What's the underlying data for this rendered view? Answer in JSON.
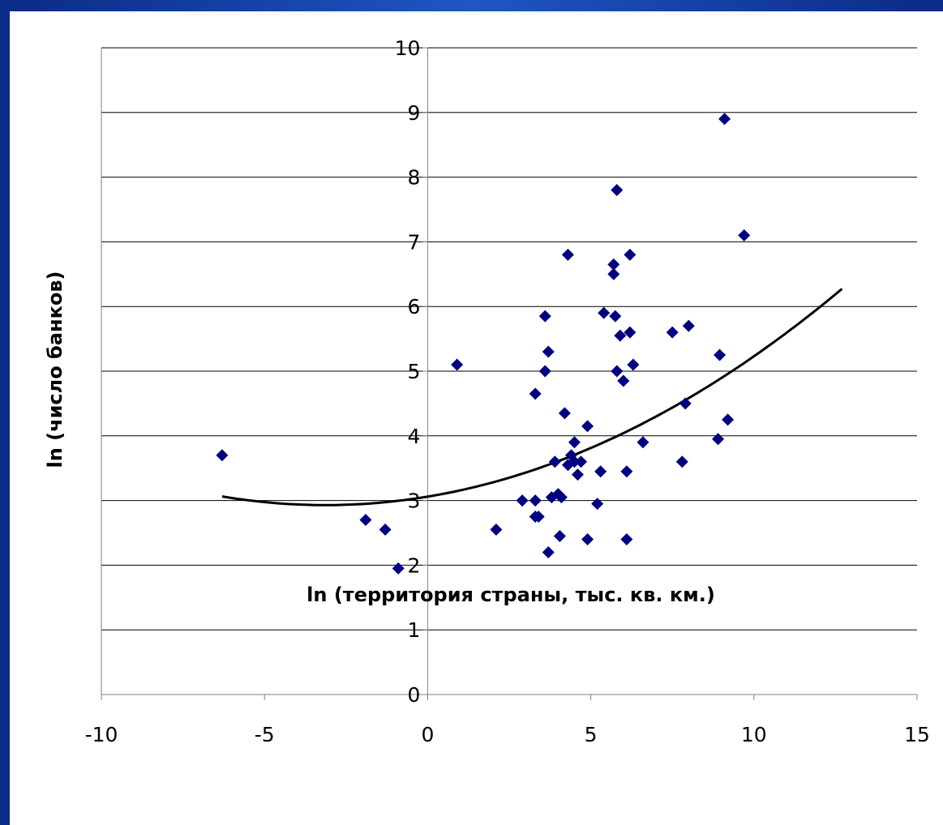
{
  "chart_data": {
    "type": "scatter",
    "xlabel": "ln (территория страны, тыс. кв. км.)",
    "ylabel": "ln (число банков)",
    "xlim": [
      -10,
      15
    ],
    "ylim": [
      0,
      10
    ],
    "x_ticks": [
      -10,
      -5,
      0,
      5,
      10,
      15
    ],
    "y_ticks": [
      0,
      1,
      2,
      3,
      4,
      5,
      6,
      7,
      8,
      9,
      10
    ],
    "x_tick_labels": [
      "-10",
      "-5",
      "0",
      "5",
      "10",
      "15"
    ],
    "y_tick_labels": [
      "0",
      "1",
      "2",
      "3",
      "4",
      "5",
      "6",
      "7",
      "8",
      "9",
      "10"
    ],
    "grid": "horizontal",
    "marker_color": "#000080",
    "trend_color": "#000000",
    "points": [
      [
        -6.3,
        3.7
      ],
      [
        -1.9,
        2.7
      ],
      [
        -1.3,
        2.55
      ],
      [
        -0.9,
        1.95
      ],
      [
        0.9,
        5.1
      ],
      [
        2.1,
        2.55
      ],
      [
        2.9,
        3.0
      ],
      [
        3.3,
        2.75
      ],
      [
        3.3,
        3.0
      ],
      [
        3.4,
        2.75
      ],
      [
        3.3,
        4.65
      ],
      [
        3.6,
        5.85
      ],
      [
        3.6,
        5.0
      ],
      [
        3.7,
        5.3
      ],
      [
        3.7,
        2.2
      ],
      [
        3.8,
        3.05
      ],
      [
        3.9,
        3.6
      ],
      [
        4.0,
        3.1
      ],
      [
        4.05,
        2.45
      ],
      [
        4.1,
        3.05
      ],
      [
        4.2,
        4.35
      ],
      [
        4.3,
        3.55
      ],
      [
        4.3,
        6.8
      ],
      [
        4.4,
        3.7
      ],
      [
        4.5,
        3.9
      ],
      [
        4.5,
        3.6
      ],
      [
        4.6,
        3.4
      ],
      [
        4.7,
        3.6
      ],
      [
        4.9,
        4.15
      ],
      [
        4.9,
        2.4
      ],
      [
        5.2,
        2.95
      ],
      [
        5.3,
        3.45
      ],
      [
        5.4,
        5.9
      ],
      [
        5.7,
        6.5
      ],
      [
        5.7,
        6.65
      ],
      [
        5.75,
        5.85
      ],
      [
        5.8,
        7.8
      ],
      [
        5.8,
        5.0
      ],
      [
        5.9,
        5.55
      ],
      [
        6.0,
        4.85
      ],
      [
        6.1,
        3.45
      ],
      [
        6.1,
        2.4
      ],
      [
        6.2,
        5.6
      ],
      [
        6.2,
        6.8
      ],
      [
        6.3,
        5.1
      ],
      [
        6.6,
        3.9
      ],
      [
        7.5,
        5.6
      ],
      [
        7.8,
        3.6
      ],
      [
        7.9,
        4.5
      ],
      [
        8.0,
        5.7
      ],
      [
        8.9,
        3.95
      ],
      [
        8.95,
        5.25
      ],
      [
        9.1,
        8.9
      ],
      [
        9.2,
        4.25
      ],
      [
        9.7,
        7.1
      ]
    ],
    "trend": {
      "type": "polynomial-2",
      "x_range": [
        -6.3,
        12.7
      ],
      "coefficients": [
        3.06,
        0.0836,
        0.01334
      ]
    }
  }
}
